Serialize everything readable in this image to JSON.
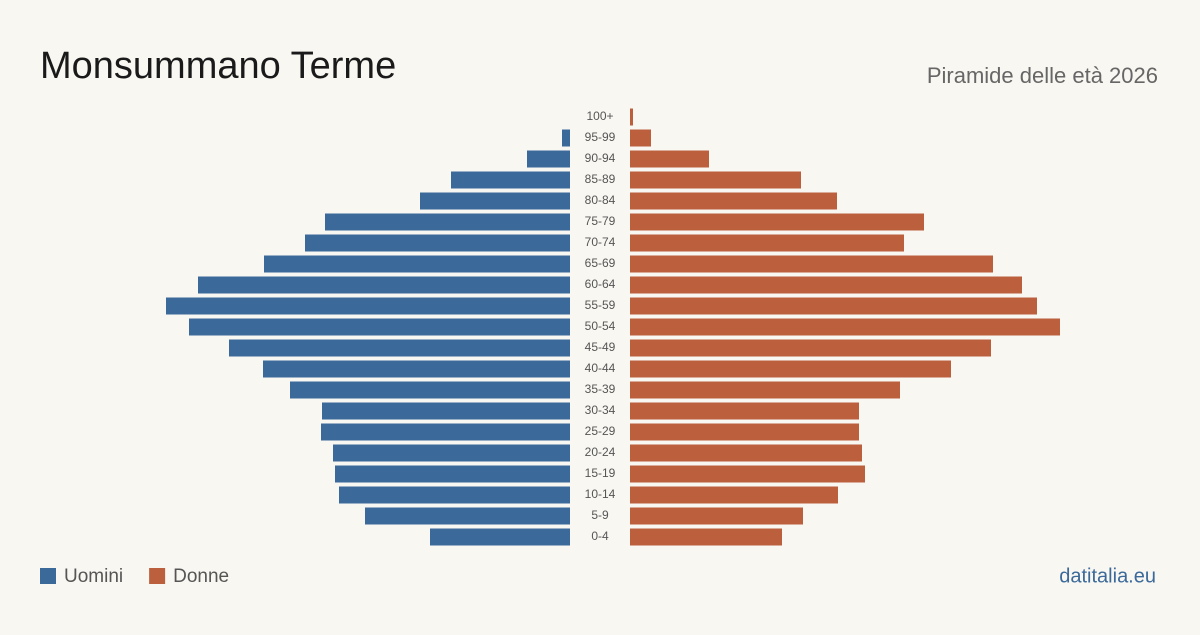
{
  "chart_data": {
    "type": "pyramid",
    "title": "Monsummano Terme",
    "subtitle": "Piramide delle età 2026",
    "categories": [
      "100+",
      "95-99",
      "90-94",
      "85-89",
      "80-84",
      "75-79",
      "70-74",
      "65-69",
      "60-64",
      "55-59",
      "50-54",
      "45-49",
      "40-44",
      "35-39",
      "30-34",
      "25-29",
      "20-24",
      "15-19",
      "10-14",
      "5-9",
      "0-4"
    ],
    "series": [
      {
        "name": "Uomini",
        "color": "#3b6a9a",
        "values": [
          0,
          8,
          43,
          119,
          150,
          245,
          265,
          306,
          372,
          404,
          381,
          341,
          307,
          280,
          248,
          249,
          237,
          235,
          231,
          205,
          140
        ]
      },
      {
        "name": "Donne",
        "color": "#bb5f3d",
        "values": [
          3,
          21,
          79,
          171,
          207,
          294,
          274,
          363,
          392,
          407,
          430,
          361,
          321,
          270,
          229,
          229,
          232,
          235,
          208,
          173,
          152
        ]
      }
    ],
    "source": "datitalia.eu"
  }
}
